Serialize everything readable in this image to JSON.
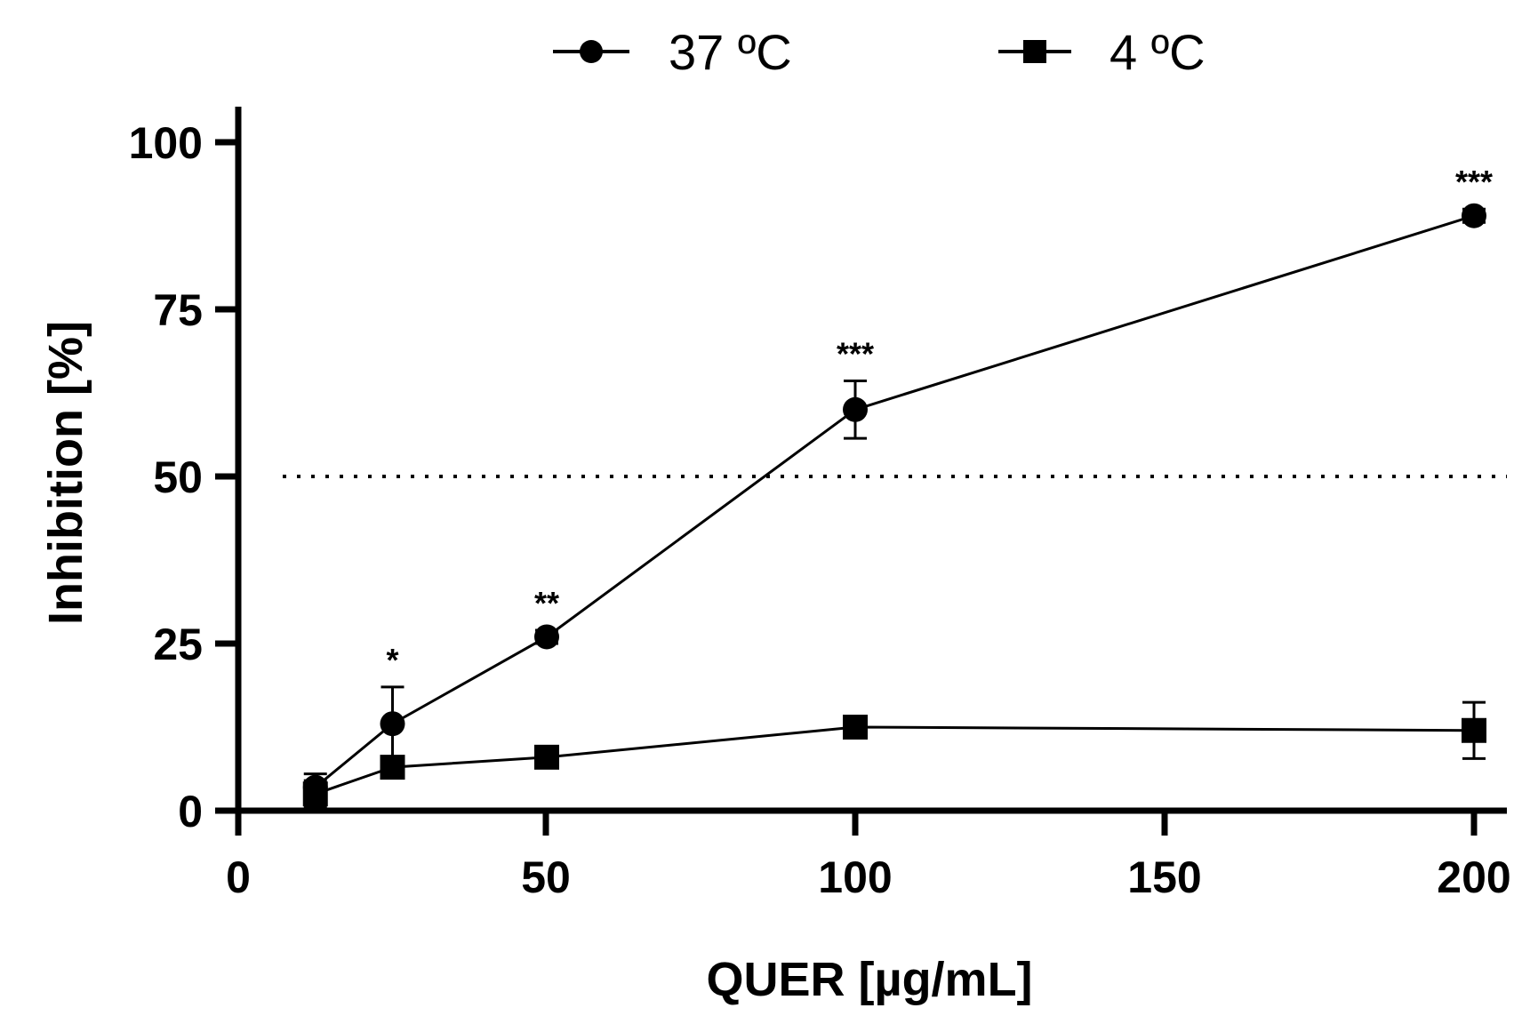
{
  "chart_data": {
    "type": "line",
    "title": "",
    "xlabel": "QUER [µg/mL]",
    "ylabel": "Inhibition [%]",
    "x_tick_labels": [
      "0",
      "50",
      "100",
      "150",
      "200"
    ],
    "y_ticks": [
      0,
      25,
      50,
      75,
      100
    ],
    "y_tick_labels": [
      "0",
      "25",
      "50",
      "75",
      "100"
    ],
    "ylim": [
      0,
      100
    ],
    "x_scale_note": "categorical-like spacing: 0,50,100,150,200 evenly spaced; data at 12.5,25,50,100,200",
    "reference_line": {
      "y": 50,
      "style": "dotted"
    },
    "series": [
      {
        "name": "37 ºC",
        "marker": "circle",
        "color": "#000000",
        "points": [
          {
            "x": 12.5,
            "y": 3.5,
            "err": 2.0,
            "sig": ""
          },
          {
            "x": 25,
            "y": 13.0,
            "err": 5.5,
            "sig": "*"
          },
          {
            "x": 50,
            "y": 26.0,
            "err": 1.0,
            "sig": "**"
          },
          {
            "x": 100,
            "y": 60.0,
            "err": 4.3,
            "sig": "***"
          },
          {
            "x": 200,
            "y": 89.0,
            "err": 1.0,
            "sig": "***"
          }
        ]
      },
      {
        "name": "4 ºC",
        "marker": "square",
        "color": "#000000",
        "points": [
          {
            "x": 12.5,
            "y": 2.5,
            "err": 2.0
          },
          {
            "x": 25,
            "y": 6.5,
            "err": 1.0
          },
          {
            "x": 50,
            "y": 8.0,
            "err": 1.0
          },
          {
            "x": 100,
            "y": 12.5,
            "err": 1.0
          },
          {
            "x": 200,
            "y": 12.0,
            "err": 4.2
          }
        ]
      }
    ],
    "legend": {
      "position": "top",
      "entries": [
        "37 ºC",
        "4 ºC"
      ]
    }
  }
}
